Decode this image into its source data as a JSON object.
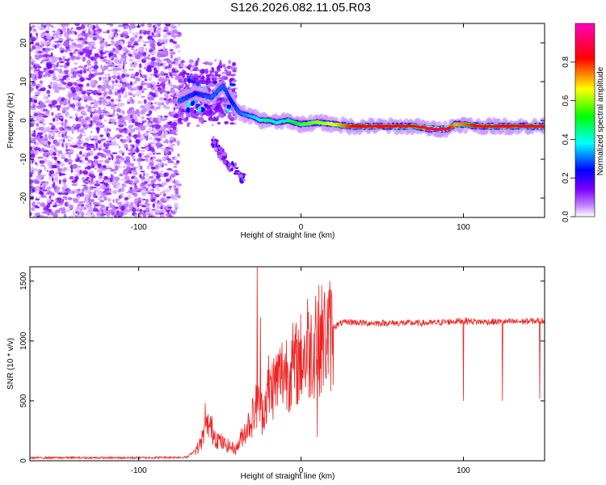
{
  "title": "S126.2026.082.11.05.R03",
  "chart_data": [
    {
      "type": "heatmap",
      "xlabel": "Height of straight line (km)",
      "ylabel": "Frequency (Hz)",
      "xlim": [
        -167,
        150
      ],
      "ylim": [
        -25,
        25
      ],
      "xticks": [
        -100,
        0,
        100
      ],
      "yticks": [
        -20,
        -10,
        0,
        10,
        20
      ],
      "colorbar": {
        "label": "Normalized spectral amplitude",
        "range": [
          0.0,
          1.0
        ],
        "ticks": [
          0.0,
          0.2,
          0.4,
          0.6,
          0.8
        ],
        "colormap": [
          "#ffffff",
          "#8000ff",
          "#0000ff",
          "#00ffff",
          "#00ff00",
          "#ffff00",
          "#ff0000",
          "#ff00c0"
        ]
      },
      "noise_region": {
        "x": [
          -167,
          -75
        ],
        "y": [
          -25,
          25
        ],
        "amplitude": 0.1
      },
      "transition_region": {
        "x": [
          -75,
          -40
        ],
        "y_center": [
          5,
          9
        ],
        "amplitude_max": 0.4
      },
      "signal_track": {
        "x": [
          -75,
          -65,
          -55,
          -48,
          -43,
          -38,
          -30,
          -25,
          -20,
          -15,
          -8,
          0,
          10,
          20,
          30,
          40,
          50,
          60,
          70,
          80,
          90,
          95,
          100,
          110,
          120,
          130,
          150
        ],
        "y": [
          5,
          7,
          6,
          9,
          5,
          2,
          1,
          0,
          0,
          -0.5,
          0,
          -1,
          -0.5,
          -1,
          -1.5,
          -1.5,
          -1.5,
          -1.5,
          -1.5,
          -2.2,
          -2.2,
          -1,
          -1,
          -1.5,
          -1.5,
          -1.5,
          -1.5
        ],
        "amplitude": [
          0.3,
          0.25,
          0.3,
          0.3,
          0.25,
          0.3,
          0.35,
          0.4,
          0.45,
          0.4,
          0.45,
          0.55,
          0.6,
          0.65,
          0.8,
          0.85,
          0.85,
          0.85,
          0.85,
          0.9,
          0.9,
          0.7,
          0.75,
          0.85,
          0.85,
          0.85,
          0.85
        ]
      },
      "lower_branch": {
        "x": [
          -55,
          -45,
          -35
        ],
        "y": [
          -5,
          -11,
          -15
        ],
        "amplitude": 0.15
      }
    },
    {
      "type": "line",
      "xlabel": "Height of straight line (km)",
      "ylabel": "SNR (10 * v/v)",
      "xlim": [
        -167,
        150
      ],
      "ylim": [
        0,
        1620
      ],
      "xticks": [
        -100,
        0,
        100
      ],
      "yticks": [
        0,
        500,
        1000,
        1500
      ],
      "series": [
        {
          "name": "SNR",
          "color": "#ee2222",
          "envelope": {
            "x": [
              -167,
              -100,
              -70,
              -63,
              -57,
              -52,
              -48,
              -40,
              -35,
              -30,
              -27,
              -24,
              -20,
              -15,
              -10,
              -5,
              0,
              5,
              10,
              15,
              20,
              25,
              30,
              40,
              60,
              80,
              100,
              110,
              130,
              150
            ],
            "y": [
              25,
              25,
              30,
              120,
              320,
              200,
              150,
              100,
              250,
              380,
              500,
              420,
              600,
              700,
              800,
              800,
              900,
              950,
              1050,
              1080,
              1120,
              1150,
              1160,
              1150,
              1150,
              1150,
              1170,
              1160,
              1160,
              1170
            ]
          },
          "spikes": [
            {
              "x": -59,
              "y": 480
            },
            {
              "x": -27,
              "y": 1620
            },
            {
              "x": -25,
              "y": 1200
            },
            {
              "x": -20,
              "y": 880
            },
            {
              "x": -5,
              "y": 1150
            },
            {
              "x": 4,
              "y": 1350
            },
            {
              "x": 9,
              "y": 1380
            },
            {
              "x": 10,
              "y": 200
            },
            {
              "x": 100,
              "y": 500
            },
            {
              "x": 124,
              "y": 500
            },
            {
              "x": 147,
              "y": 520
            }
          ]
        }
      ]
    }
  ]
}
